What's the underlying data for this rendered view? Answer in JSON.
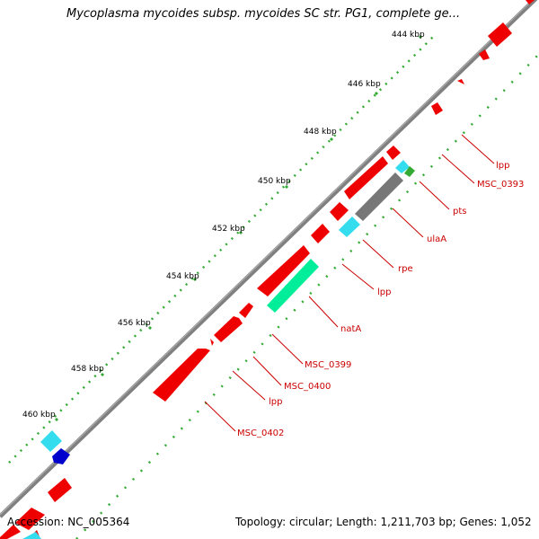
{
  "map": {
    "title": "Mycoplasma mycoides subsp. mycoides SC str. PG1, complete ge...",
    "accession_text": "Accession: NC_005364",
    "summary_text": "Topology: circular; Length: 1,211,703 bp; Genes: 1,052"
  },
  "colors": {
    "backbone": "#808080",
    "cds": "#ee0000",
    "trna": "#33ddee",
    "rrna": "#00dd99",
    "other": "#777777",
    "blue": "#0000cc",
    "green": "#33aa33",
    "label": "#cc0000"
  },
  "ticks": [
    {
      "label": "444 kbp"
    },
    {
      "label": "446 kbp"
    },
    {
      "label": "448 kbp"
    },
    {
      "label": "450 kbp"
    },
    {
      "label": "452 kbp"
    },
    {
      "label": "454 kbp"
    },
    {
      "label": "456 kbp"
    },
    {
      "label": "458 kbp"
    },
    {
      "label": "460 kbp"
    }
  ],
  "gene_labels": [
    {
      "text": "lpp"
    },
    {
      "text": "MSC_0393"
    },
    {
      "text": "pts"
    },
    {
      "text": "ulaA"
    },
    {
      "text": "rpe"
    },
    {
      "text": "lpp"
    },
    {
      "text": "natA"
    },
    {
      "text": "MSC_0399"
    },
    {
      "text": "MSC_0400"
    },
    {
      "text": "lpp"
    },
    {
      "text": "MSC_0402"
    }
  ]
}
